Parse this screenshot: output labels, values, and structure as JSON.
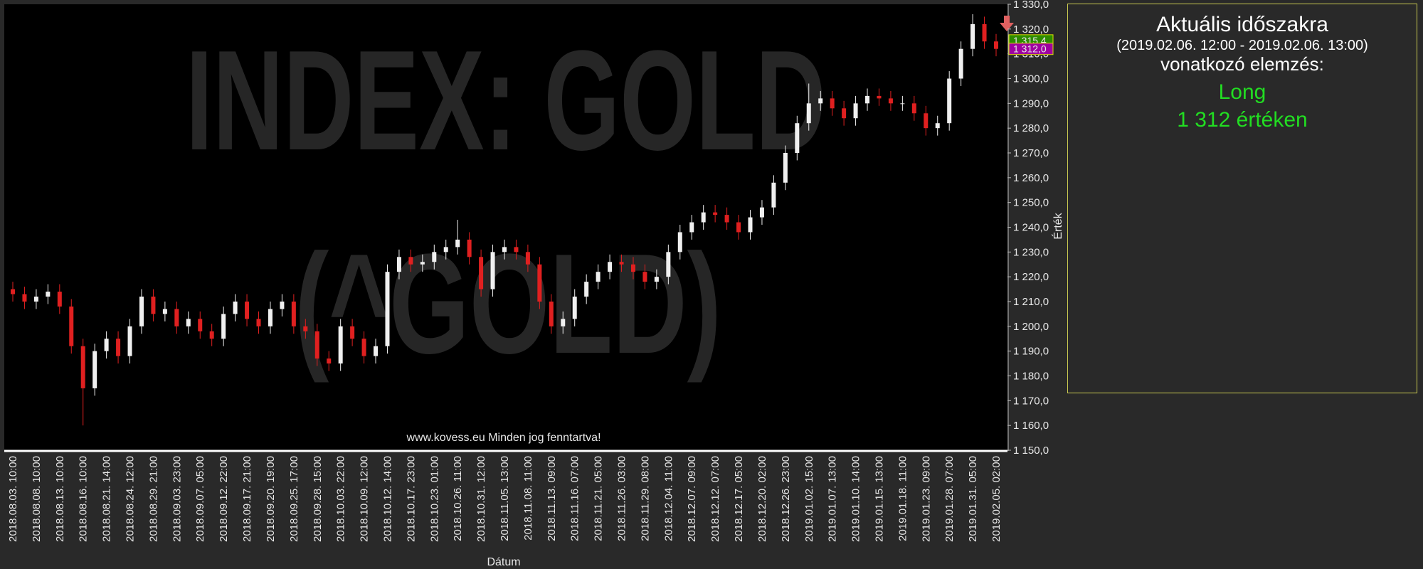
{
  "chart_data": {
    "type": "candlestick",
    "watermark": [
      "INDEX: GOLD",
      "(^GOLD)"
    ],
    "footer": "www.kovess.eu Minden jog fenntartva!",
    "xlabel": "Dátum",
    "ylabel": "Érték",
    "categories": [
      "2018.08.03. 10:00",
      null,
      "2018.08.08. 10:00",
      null,
      "2018.08.13. 10:00",
      null,
      "2018.08.16. 10:00",
      null,
      "2018.08.21. 14:00",
      null,
      "2018.08.24. 12:00",
      null,
      "2018.08.29. 21:00",
      null,
      "2018.09.03. 23:00",
      null,
      "2018.09.07. 05:00",
      null,
      "2018.09.12. 22:00",
      null,
      "2018.09.17. 21:00",
      null,
      "2018.09.20. 19:00",
      null,
      "2018.09.25. 17:00",
      null,
      "2018.09.28. 15:00",
      null,
      "2018.10.03. 22:00",
      null,
      "2018.10.09. 12:00",
      null,
      "2018.10.12. 14:00",
      null,
      "2018.10.17. 23:00",
      null,
      "2018.10.23. 01:00",
      null,
      "2018.10.26. 11:00",
      null,
      "2018.10.31. 12:00",
      null,
      "2018.11.05. 13:00",
      null,
      "2018.11.08. 11:00",
      null,
      "2018.11.13. 09:00",
      null,
      "2018.11.16. 07:00",
      null,
      "2018.11.21. 05:00",
      null,
      "2018.11.26. 03:00",
      null,
      "2018.11.29. 08:00",
      null,
      "2018.12.04. 11:00",
      null,
      "2018.12.07. 09:00",
      null,
      "2018.12.12. 07:00",
      null,
      "2018.12.17. 05:00",
      null,
      "2018.12.20. 02:00",
      null,
      "2018.12.26. 23:00",
      null,
      "2019.01.02. 15:00",
      null,
      "2019.01.07. 13:00",
      null,
      "2019.01.10. 14:00",
      null,
      "2019.01.15. 13:00",
      null,
      "2019.01.18. 11:00",
      null,
      "2019.01.23. 09:00",
      null,
      "2019.01.28. 07:00",
      null,
      "2019.01.31. 05:00",
      null,
      "2019.02.05. 02:00"
    ],
    "open": [
      1215,
      1213,
      1210,
      1212,
      1214,
      1208,
      1192,
      1175,
      1190,
      1195,
      1188,
      1200,
      1212,
      1205,
      1207,
      1200,
      1203,
      1198,
      1195,
      1205,
      1210,
      1203,
      1200,
      1207,
      1210,
      1200,
      1198,
      1187,
      1185,
      1200,
      1195,
      1188,
      1192,
      1222,
      1228,
      1225,
      1226,
      1230,
      1232,
      1235,
      1228,
      1215,
      1230,
      1232,
      1230,
      1225,
      1210,
      1200,
      1203,
      1212,
      1218,
      1222,
      1226,
      1225,
      1222,
      1218,
      1220,
      1230,
      1238,
      1242,
      1246,
      1245,
      1242,
      1238,
      1244,
      1248,
      1258,
      1270,
      1282,
      1290,
      1292,
      1288,
      1284,
      1290,
      1293,
      1292,
      1290,
      1290,
      1286,
      1280,
      1282,
      1300,
      1312,
      1322,
      1315
    ],
    "high": [
      1218,
      1216,
      1215,
      1217,
      1217,
      1211,
      1195,
      1193,
      1198,
      1198,
      1203,
      1215,
      1215,
      1210,
      1210,
      1206,
      1206,
      1201,
      1208,
      1213,
      1213,
      1206,
      1210,
      1213,
      1213,
      1203,
      1201,
      1190,
      1203,
      1203,
      1198,
      1195,
      1225,
      1231,
      1231,
      1229,
      1233,
      1235,
      1243,
      1238,
      1231,
      1233,
      1235,
      1235,
      1233,
      1228,
      1213,
      1206,
      1215,
      1221,
      1225,
      1229,
      1229,
      1228,
      1225,
      1223,
      1233,
      1241,
      1245,
      1249,
      1249,
      1248,
      1245,
      1247,
      1251,
      1261,
      1273,
      1285,
      1298,
      1295,
      1295,
      1291,
      1293,
      1296,
      1296,
      1295,
      1293,
      1293,
      1289,
      1285,
      1303,
      1315,
      1326,
      1325,
      1318
    ],
    "low": [
      1210,
      1207,
      1207,
      1209,
      1205,
      1189,
      1160,
      1172,
      1187,
      1185,
      1185,
      1197,
      1202,
      1202,
      1197,
      1197,
      1195,
      1192,
      1192,
      1202,
      1200,
      1197,
      1197,
      1204,
      1197,
      1195,
      1184,
      1182,
      1182,
      1192,
      1185,
      1185,
      1189,
      1219,
      1222,
      1222,
      1223,
      1227,
      1229,
      1225,
      1212,
      1212,
      1227,
      1227,
      1222,
      1207,
      1197,
      1197,
      1200,
      1209,
      1215,
      1219,
      1222,
      1219,
      1215,
      1215,
      1217,
      1227,
      1235,
      1239,
      1242,
      1239,
      1235,
      1235,
      1241,
      1245,
      1255,
      1267,
      1279,
      1287,
      1285,
      1281,
      1281,
      1287,
      1289,
      1287,
      1287,
      1283,
      1277,
      1277,
      1279,
      1297,
      1309,
      1312,
      1309
    ],
    "close": [
      1213,
      1210,
      1212,
      1214,
      1208,
      1192,
      1175,
      1190,
      1195,
      1188,
      1200,
      1212,
      1205,
      1207,
      1200,
      1203,
      1198,
      1195,
      1205,
      1210,
      1203,
      1200,
      1207,
      1210,
      1200,
      1198,
      1187,
      1185,
      1200,
      1195,
      1188,
      1192,
      1222,
      1228,
      1225,
      1226,
      1230,
      1232,
      1235,
      1228,
      1215,
      1230,
      1232,
      1230,
      1225,
      1210,
      1200,
      1203,
      1212,
      1218,
      1222,
      1226,
      1225,
      1222,
      1218,
      1220,
      1230,
      1238,
      1242,
      1246,
      1245,
      1242,
      1238,
      1244,
      1248,
      1258,
      1270,
      1282,
      1290,
      1292,
      1288,
      1284,
      1290,
      1293,
      1292,
      1290,
      1290,
      1286,
      1280,
      1282,
      1300,
      1312,
      1322,
      1315,
      1312
    ],
    "up_color": "#f0f0f0",
    "down_color": "#e02020",
    "ylim": [
      1150,
      1330
    ],
    "yticks": [
      {
        "value": 1150,
        "label": "1 150,0"
      },
      {
        "value": 1160,
        "label": "1 160,0"
      },
      {
        "value": 1170,
        "label": "1 170,0"
      },
      {
        "value": 1180,
        "label": "1 180,0"
      },
      {
        "value": 1190,
        "label": "1 190,0"
      },
      {
        "value": 1200,
        "label": "1 200,0"
      },
      {
        "value": 1210,
        "label": "1 210,0"
      },
      {
        "value": 1220,
        "label": "1 220,0"
      },
      {
        "value": 1230,
        "label": "1 230,0"
      },
      {
        "value": 1240,
        "label": "1 240,0"
      },
      {
        "value": 1250,
        "label": "1 250,0"
      },
      {
        "value": 1260,
        "label": "1 260,0"
      },
      {
        "value": 1270,
        "label": "1 270,0"
      },
      {
        "value": 1280,
        "label": "1 280,0"
      },
      {
        "value": 1290,
        "label": "1 290,0"
      },
      {
        "value": 1300,
        "label": "1 300,0"
      },
      {
        "value": 1310,
        "label": "1 310,0"
      },
      {
        "value": 1320,
        "label": "1 320,0"
      },
      {
        "value": 1330,
        "label": "1 330,0"
      }
    ],
    "price_markers": [
      {
        "value": 1315.4,
        "label": "1 315,4",
        "color": "#2e8b00"
      },
      {
        "value": 1312.0,
        "label": "1 312,0",
        "color": "#a000a0"
      }
    ]
  },
  "panel": {
    "title": "Aktuális időszakra",
    "period": "(2019.02.06. 12:00 - 2019.02.06. 13:00)",
    "subtitle": "vonatkozó elemzés:",
    "signal": "Long",
    "price_text": "1 312  értéken"
  }
}
